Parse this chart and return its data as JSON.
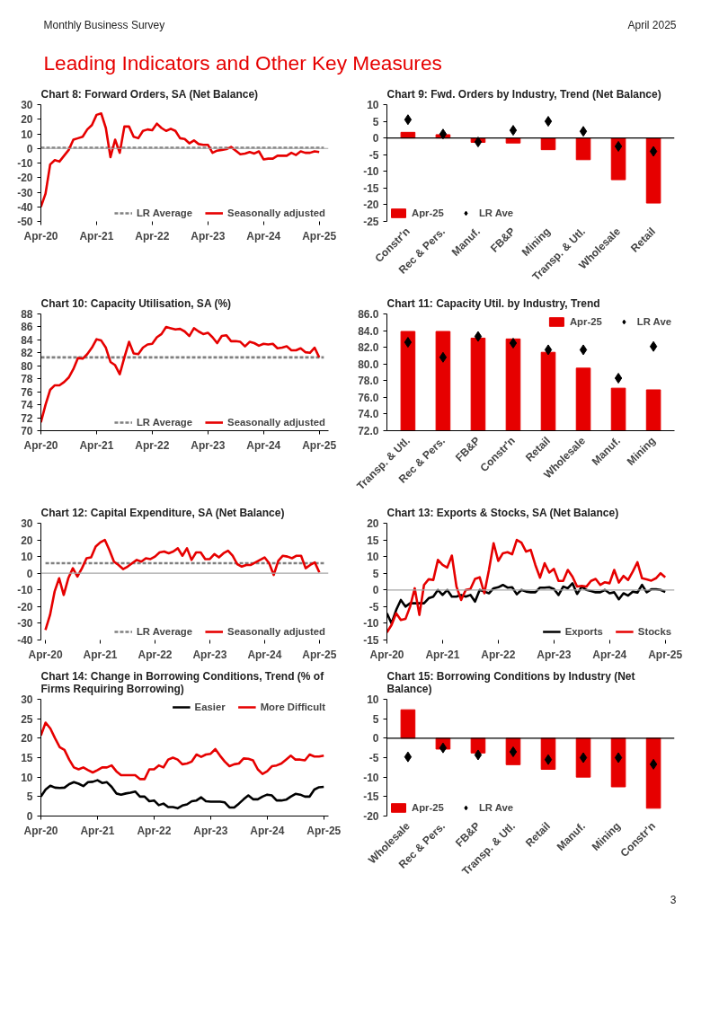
{
  "chart_data": [
    {
      "type": "other",
      "title": "Leading Indicators and Other Key Measures",
      "annotations": [
        "Monthly Business Survey",
        "April 2025"
      ]
    },
    {
      "type": "line",
      "title": "Chart 8: Forward Orders, SA (Net Balance)",
      "legend": "bottom right",
      "x": [
        "2020-04",
        "2020-05",
        "2020-06",
        "2020-07",
        "2020-08",
        "2020-09",
        "2020-10",
        "2020-11",
        "2020-12",
        "2021-01",
        "2021-02",
        "2021-03",
        "2021-04",
        "2021-05",
        "2021-06",
        "2021-07",
        "2021-08",
        "2021-09",
        "2021-10",
        "2021-11",
        "2021-12",
        "2022-01",
        "2022-02",
        "2022-03",
        "2022-04",
        "2022-05",
        "2022-06",
        "2022-07",
        "2022-08",
        "2022-09",
        "2022-10",
        "2022-11",
        "2022-12",
        "2023-01",
        "2023-02",
        "2023-03",
        "2023-04",
        "2023-05",
        "2023-06",
        "2023-07",
        "2023-08",
        "2023-09",
        "2023-10",
        "2023-11",
        "2023-12",
        "2024-01",
        "2024-02",
        "2024-03",
        "2024-04",
        "2024-05",
        "2024-06",
        "2024-07",
        "2024-08",
        "2024-09",
        "2024-10",
        "2024-11",
        "2024-12",
        "2025-01",
        "2025-02",
        "2025-03",
        "2025-04"
      ],
      "xlim": [
        "2020-04",
        "2025-06"
      ],
      "xticks": [
        {
          "value": "2020-04",
          "label": "Apr-20"
        },
        {
          "value": "2021-04",
          "label": "Apr-21"
        },
        {
          "value": "2022-04",
          "label": "Apr-22"
        },
        {
          "value": "2023-04",
          "label": "Apr-23"
        },
        {
          "value": "2024-04",
          "label": "Apr-24"
        },
        {
          "value": "2025-04",
          "label": "Apr-25"
        }
      ],
      "ylim": [
        -50,
        30
      ],
      "yticks": [
        -50,
        -40,
        -30,
        -20,
        -10,
        0,
        10,
        20,
        30
      ],
      "ref_lines": [
        {
          "axis": "y",
          "value": 0,
          "color": "#a6a6a6"
        }
      ],
      "series": [
        {
          "name": "LR Average",
          "color": "#808080",
          "line_style": "dashed",
          "x": [
            "2020-04",
            "2025-05"
          ],
          "values": [
            0.5,
            0.5
          ]
        },
        {
          "name": "Seasonally adjusted",
          "color": "#e60000",
          "values": [
            -40,
            -31,
            -11,
            -8,
            -9,
            -5,
            -1,
            6,
            7,
            8,
            13,
            16,
            23,
            24,
            14,
            -6,
            6,
            -3,
            15,
            15,
            8,
            7,
            12,
            13,
            12.5,
            17,
            14,
            12,
            13.5,
            12,
            7,
            6.5,
            3.5,
            5.5,
            3,
            2.5,
            2.5,
            -3,
            -1.5,
            -1,
            -0.5,
            1,
            -1.5,
            -4,
            -3.5,
            -2.5,
            -3.5,
            -2,
            -7.5,
            -7,
            -7,
            -5,
            -5,
            -5,
            -3,
            -4.5,
            -2,
            -3,
            -3,
            -2,
            -2.5
          ]
        }
      ]
    },
    {
      "type": "bar",
      "title": "Chart 9: Fwd. Orders by Industry, Trend (Net Balance)",
      "legend": "bottom left",
      "categories": [
        "Constr'n",
        "Rec & Pers.",
        "Manuf.",
        "FB&P",
        "Mining",
        "Transp. & Utl.",
        "Wholesale",
        "Retail"
      ],
      "ylim": [
        -25,
        10
      ],
      "yticks": [
        -25,
        -20,
        -15,
        -10,
        -5,
        0,
        5,
        10
      ],
      "ref_lines": [
        {
          "axis": "y",
          "value": 0,
          "color": "#000000"
        }
      ],
      "series": [
        {
          "name": "Apr-25",
          "type": "bar",
          "color": "#e60000",
          "values": [
            1.7,
            1,
            -1.3,
            -1.5,
            -3.5,
            -6.5,
            -12.5,
            -19.5
          ]
        },
        {
          "name": "LR Ave",
          "type": "scatter",
          "marker": "diamond",
          "color": "#000000",
          "values": [
            5.5,
            1.2,
            -1.2,
            2.3,
            5,
            2,
            -2.5,
            -4
          ]
        }
      ]
    },
    {
      "type": "line",
      "title": "Chart 10: Capacity Utilisation, SA (%)",
      "legend": "bottom right",
      "x": [
        "2020-04",
        "2020-05",
        "2020-06",
        "2020-07",
        "2020-08",
        "2020-09",
        "2020-10",
        "2020-11",
        "2020-12",
        "2021-01",
        "2021-02",
        "2021-03",
        "2021-04",
        "2021-05",
        "2021-06",
        "2021-07",
        "2021-08",
        "2021-09",
        "2021-10",
        "2021-11",
        "2021-12",
        "2022-01",
        "2022-02",
        "2022-03",
        "2022-04",
        "2022-05",
        "2022-06",
        "2022-07",
        "2022-08",
        "2022-09",
        "2022-10",
        "2022-11",
        "2022-12",
        "2023-01",
        "2023-02",
        "2023-03",
        "2023-04",
        "2023-05",
        "2023-06",
        "2023-07",
        "2023-08",
        "2023-09",
        "2023-10",
        "2023-11",
        "2023-12",
        "2024-01",
        "2024-02",
        "2024-03",
        "2024-04",
        "2024-05",
        "2024-06",
        "2024-07",
        "2024-08",
        "2024-09",
        "2024-10",
        "2024-11",
        "2024-12",
        "2025-01",
        "2025-02",
        "2025-03",
        "2025-04"
      ],
      "xlim": [
        "2020-04",
        "2025-06"
      ],
      "xticks": [
        {
          "value": "2020-04",
          "label": "Apr-20"
        },
        {
          "value": "2021-04",
          "label": "Apr-21"
        },
        {
          "value": "2022-04",
          "label": "Apr-22"
        },
        {
          "value": "2023-04",
          "label": "Apr-23"
        },
        {
          "value": "2024-04",
          "label": "Apr-24"
        },
        {
          "value": "2025-04",
          "label": "Apr-25"
        }
      ],
      "ylim": [
        70,
        88
      ],
      "yticks": [
        70,
        72,
        74,
        76,
        78,
        80,
        82,
        84,
        86,
        88
      ],
      "series": [
        {
          "name": "LR Average",
          "color": "#808080",
          "line_style": "dashed",
          "x": [
            "2020-04",
            "2025-05"
          ],
          "values": [
            81.3,
            81.3
          ]
        },
        {
          "name": "Seasonally adjusted",
          "color": "#e60000",
          "values": [
            71.3,
            74,
            76.3,
            77,
            77,
            77.5,
            78.2,
            79.5,
            81.2,
            81.1,
            81.8,
            82.8,
            84.1,
            83.9,
            82.8,
            80.6,
            80.1,
            78.7,
            81.3,
            83.7,
            81.9,
            81.8,
            82.8,
            83.3,
            83.4,
            84.4,
            84.9,
            86,
            85.8,
            85.6,
            85.7,
            85.3,
            84.6,
            85.8,
            85.3,
            84.9,
            85.1,
            84.4,
            83.5,
            84.6,
            84.7,
            83.8,
            83.8,
            83.7,
            83,
            83.7,
            83.5,
            83.1,
            83.4,
            83.3,
            83.4,
            82.7,
            82.8,
            83,
            82.4,
            82.4,
            82.7,
            82.1,
            82,
            82.8,
            81.3
          ]
        }
      ]
    },
    {
      "type": "bar",
      "title": "Chart 11: Capacity Util. by Industry, Trend",
      "legend": "top right",
      "categories": [
        "Transp. & Utl.",
        "Rec & Pers.",
        "FB&P",
        "Constr'n",
        "Retail",
        "Wholesale",
        "Manuf.",
        "Mining"
      ],
      "ylim": [
        72,
        86
      ],
      "yticks": [
        {
          "value": 72,
          "label": "72.0"
        },
        {
          "value": 74,
          "label": "74.0"
        },
        {
          "value": 76,
          "label": "76.0"
        },
        {
          "value": 78,
          "label": "78.0"
        },
        {
          "value": 80,
          "label": "80.0"
        },
        {
          "value": 82,
          "label": "82.0"
        },
        {
          "value": 84,
          "label": "84.0"
        },
        {
          "value": 86,
          "label": "86.0"
        }
      ],
      "series": [
        {
          "name": "Apr-25",
          "type": "bar",
          "color": "#e60000",
          "values": [
            83.9,
            83.9,
            83.1,
            83.0,
            81.4,
            79.5,
            77.1,
            76.9
          ]
        },
        {
          "name": "LR Ave",
          "type": "scatter",
          "marker": "diamond",
          "color": "#000000",
          "values": [
            82.6,
            80.8,
            83.3,
            82.5,
            81.7,
            81.7,
            78.3,
            82.1
          ]
        }
      ]
    },
    {
      "type": "line",
      "title": "Chart 12: Capital Expenditure, SA (Net Balance)",
      "legend": "bottom right",
      "x": [
        "2020-04",
        "2020-05",
        "2020-06",
        "2020-07",
        "2020-08",
        "2020-09",
        "2020-10",
        "2020-11",
        "2020-12",
        "2021-01",
        "2021-02",
        "2021-03",
        "2021-04",
        "2021-05",
        "2021-06",
        "2021-07",
        "2021-08",
        "2021-09",
        "2021-10",
        "2021-11",
        "2021-12",
        "2022-01",
        "2022-02",
        "2022-03",
        "2022-04",
        "2022-05",
        "2022-06",
        "2022-07",
        "2022-08",
        "2022-09",
        "2022-10",
        "2022-11",
        "2022-12",
        "2023-01",
        "2023-02",
        "2023-03",
        "2023-04",
        "2023-05",
        "2023-06",
        "2023-07",
        "2023-08",
        "2023-09",
        "2023-10",
        "2023-11",
        "2023-12",
        "2024-01",
        "2024-02",
        "2024-03",
        "2024-04",
        "2024-05",
        "2024-06",
        "2024-07",
        "2024-08",
        "2024-09",
        "2024-10",
        "2024-11",
        "2024-12",
        "2025-01",
        "2025-02",
        "2025-03",
        "2025-04"
      ],
      "xlim": [
        "2020-03",
        "2025-06"
      ],
      "xticks": [
        {
          "value": "2020-04",
          "label": "Apr-20"
        },
        {
          "value": "2021-04",
          "label": "Apr-21"
        },
        {
          "value": "2022-04",
          "label": "Apr-22"
        },
        {
          "value": "2023-04",
          "label": "Apr-23"
        },
        {
          "value": "2024-04",
          "label": "Apr-24"
        },
        {
          "value": "2025-04",
          "label": "Apr-25"
        }
      ],
      "ylim": [
        -40,
        30
      ],
      "yticks": [
        -40,
        -30,
        -20,
        -10,
        0,
        10,
        20,
        30
      ],
      "ref_lines": [
        {
          "axis": "y",
          "value": 0,
          "color": "#a6a6a6"
        }
      ],
      "series": [
        {
          "name": "LR Average",
          "color": "#808080",
          "line_style": "dashed",
          "x": [
            "2020-04",
            "2025-05"
          ],
          "values": [
            6,
            6
          ]
        },
        {
          "name": "Seasonally adjusted",
          "color": "#e60000",
          "values": [
            -34,
            -25,
            -11,
            -3,
            -13,
            -3,
            3,
            -2,
            3,
            9,
            9.5,
            16,
            18.5,
            20,
            14,
            7,
            5,
            2.5,
            4,
            6,
            8,
            7,
            9,
            8.5,
            10,
            12.5,
            13,
            12,
            13,
            15,
            10.5,
            15,
            8,
            12.5,
            12.5,
            8.5,
            8.5,
            11.5,
            9.5,
            12,
            13.5,
            10.5,
            5.5,
            4,
            5,
            5,
            6.5,
            8,
            9.5,
            6,
            -1,
            7.5,
            10.5,
            10,
            9,
            10.5,
            10.5,
            3,
            5,
            6.5,
            0.5
          ]
        }
      ]
    },
    {
      "type": "line",
      "title": "Chart 13: Exports & Stocks, SA (Net Balance)",
      "legend": "bottom right",
      "x": [
        "2020-04",
        "2020-05",
        "2020-06",
        "2020-07",
        "2020-08",
        "2020-09",
        "2020-10",
        "2020-11",
        "2020-12",
        "2021-01",
        "2021-02",
        "2021-03",
        "2021-04",
        "2021-05",
        "2021-06",
        "2021-07",
        "2021-08",
        "2021-09",
        "2021-10",
        "2021-11",
        "2021-12",
        "2022-01",
        "2022-02",
        "2022-03",
        "2022-04",
        "2022-05",
        "2022-06",
        "2022-07",
        "2022-08",
        "2022-09",
        "2022-10",
        "2022-11",
        "2022-12",
        "2023-01",
        "2023-02",
        "2023-03",
        "2023-04",
        "2023-05",
        "2023-06",
        "2023-07",
        "2023-08",
        "2023-09",
        "2023-10",
        "2023-11",
        "2023-12",
        "2024-01",
        "2024-02",
        "2024-03",
        "2024-04",
        "2024-05",
        "2024-06",
        "2024-07",
        "2024-08",
        "2024-09",
        "2024-10",
        "2024-11",
        "2024-12",
        "2025-01",
        "2025-02",
        "2025-03",
        "2025-04"
      ],
      "xlim": [
        "2020-04",
        "2025-06"
      ],
      "xticks": [
        {
          "value": "2020-04",
          "label": "Apr-20"
        },
        {
          "value": "2021-04",
          "label": "Apr-21"
        },
        {
          "value": "2022-04",
          "label": "Apr-22"
        },
        {
          "value": "2023-04",
          "label": "Apr-23"
        },
        {
          "value": "2024-04",
          "label": "Apr-24"
        },
        {
          "value": "2025-04",
          "label": "Apr-25"
        }
      ],
      "ylim": [
        -15,
        20
      ],
      "yticks": [
        -15,
        -10,
        -5,
        0,
        5,
        10,
        15,
        20
      ],
      "ref_lines": [
        {
          "axis": "y",
          "value": 0,
          "color": "#a6a6a6"
        }
      ],
      "series": [
        {
          "name": "Exports",
          "color": "#000000",
          "values": [
            -7,
            -10,
            -6,
            -3,
            -5,
            -4,
            -4,
            -4,
            -4,
            -2.5,
            -2,
            0,
            -1.5,
            0,
            -2,
            -2,
            -1.5,
            -2,
            -1.5,
            -3.5,
            0,
            -0.5,
            -1,
            0.5,
            0.8,
            1.5,
            0.7,
            0.8,
            -1.3,
            0,
            -0.5,
            -0.7,
            -0.7,
            0.7,
            0.7,
            0.8,
            0.3,
            -1.5,
            1,
            0.5,
            2,
            -1.2,
            1,
            0,
            -0.3,
            -0.7,
            -0.7,
            0,
            -1,
            -0.7,
            -2.8,
            -1,
            -1.7,
            -0.5,
            -0.8,
            1.5,
            -0.7,
            0.2,
            0.2,
            0,
            -0.6
          ]
        },
        {
          "name": "Stocks",
          "color": "#e60000",
          "values": [
            -12.7,
            -10.5,
            -7,
            -9,
            -8.7,
            -5,
            0.5,
            -7.5,
            1.5,
            3.2,
            3,
            9,
            7.5,
            6.7,
            10.3,
            1,
            -3,
            0,
            0.3,
            3.3,
            3.8,
            -1,
            6,
            14,
            8.7,
            11,
            11.3,
            10.7,
            15,
            14.2,
            11.5,
            12,
            7.5,
            3.7,
            8,
            5.2,
            6.3,
            2.7,
            2.7,
            6,
            4,
            1,
            1.2,
            1,
            2.7,
            3.3,
            1.5,
            2.3,
            2,
            6,
            2.2,
            4.2,
            3,
            5.5,
            8.3,
            3.5,
            3.2,
            2.8,
            3.5,
            5,
            3.8
          ]
        }
      ]
    },
    {
      "type": "line",
      "title": "Chart 14: Change in Borrowing Conditions, Trend (% of Firms Requiring Borrowing)",
      "legend": "top right",
      "x": [
        "2020-04",
        "2020-05",
        "2020-06",
        "2020-07",
        "2020-08",
        "2020-09",
        "2020-10",
        "2020-11",
        "2020-12",
        "2021-01",
        "2021-02",
        "2021-03",
        "2021-04",
        "2021-05",
        "2021-06",
        "2021-07",
        "2021-08",
        "2021-09",
        "2021-10",
        "2021-11",
        "2021-12",
        "2022-01",
        "2022-02",
        "2022-03",
        "2022-04",
        "2022-05",
        "2022-06",
        "2022-07",
        "2022-08",
        "2022-09",
        "2022-10",
        "2022-11",
        "2022-12",
        "2023-01",
        "2023-02",
        "2023-03",
        "2023-04",
        "2023-05",
        "2023-06",
        "2023-07",
        "2023-08",
        "2023-09",
        "2023-10",
        "2023-11",
        "2023-12",
        "2024-01",
        "2024-02",
        "2024-03",
        "2024-04",
        "2024-05",
        "2024-06",
        "2024-07",
        "2024-08",
        "2024-09",
        "2024-10",
        "2024-11",
        "2024-12",
        "2025-01",
        "2025-02",
        "2025-03",
        "2025-04"
      ],
      "xlim": [
        "2020-04",
        "2025-05"
      ],
      "xticks": [
        {
          "value": "2020-04",
          "label": "Apr-20"
        },
        {
          "value": "2021-04",
          "label": "Apr-21"
        },
        {
          "value": "2022-04",
          "label": "Apr-22"
        },
        {
          "value": "2023-04",
          "label": "Apr-23"
        },
        {
          "value": "2024-04",
          "label": "Apr-24"
        },
        {
          "value": "2025-04",
          "label": "Apr-25"
        }
      ],
      "ylim": [
        0,
        30
      ],
      "yticks": [
        0,
        5,
        10,
        15,
        20,
        25,
        30
      ],
      "series": [
        {
          "name": "Easier",
          "color": "#000000",
          "values": [
            5,
            6.8,
            7.8,
            7.3,
            7.2,
            7.3,
            8.2,
            8.7,
            8.3,
            7.7,
            8.7,
            8.8,
            9.2,
            8.5,
            8.7,
            7.5,
            5.8,
            5.5,
            5.8,
            6,
            6.3,
            5,
            5,
            3.8,
            4,
            2.8,
            3.2,
            2.3,
            2.3,
            2,
            2.7,
            3,
            3.8,
            4,
            4.8,
            3.8,
            3.7,
            3.7,
            3.7,
            3.5,
            2.2,
            2.2,
            3.2,
            4.3,
            5.3,
            4.3,
            4.3,
            5,
            5.5,
            5.3,
            4,
            4,
            4.2,
            5,
            5.7,
            5.5,
            5,
            5,
            6.8,
            7.4,
            7.5
          ]
        },
        {
          "name": "More Difficult",
          "color": "#e60000",
          "values": [
            20.7,
            24,
            22.5,
            20,
            17.7,
            17,
            14.5,
            12.5,
            12,
            12.5,
            11.8,
            11.2,
            11.8,
            12.5,
            12.5,
            13,
            11.5,
            10.5,
            10.5,
            10.5,
            10.5,
            9.5,
            9.5,
            12,
            12,
            13,
            12.5,
            14.5,
            15,
            14.5,
            13.3,
            13.5,
            14,
            15.8,
            15.2,
            15.8,
            16,
            17.2,
            15.5,
            14,
            12.8,
            13.3,
            13.5,
            14.8,
            14.7,
            14.3,
            12,
            10.8,
            11.5,
            12.8,
            13,
            13.5,
            14.5,
            15.5,
            14.5,
            14.5,
            14.3,
            15.8,
            15.3,
            15.3,
            15.5
          ]
        }
      ]
    },
    {
      "type": "bar",
      "title": "Chart 15: Borrowing Conditions by Industry (Net Balance)",
      "legend": "bottom left",
      "categories": [
        "Wholesale",
        "Rec & Pers.",
        "FB&P",
        "Transp. & Utl.",
        "Retail",
        "Manuf.",
        "Mining",
        "Constr'n"
      ],
      "ylim": [
        -20,
        10
      ],
      "yticks": [
        -20,
        -15,
        -10,
        -5,
        0,
        5,
        10
      ],
      "ref_lines": [
        {
          "axis": "y",
          "value": 0,
          "color": "#000000"
        }
      ],
      "series": [
        {
          "name": "Apr-25",
          "type": "bar",
          "color": "#e60000",
          "values": [
            7.3,
            -2.8,
            -3.8,
            -6.8,
            -8,
            -10,
            -12.5,
            -18
          ]
        },
        {
          "name": "LR Ave",
          "type": "scatter",
          "marker": "diamond",
          "color": "#000000",
          "values": [
            -4.8,
            -2.5,
            -4.3,
            -3.5,
            -5.5,
            -5,
            -5,
            -6.7
          ]
        }
      ]
    },
    {
      "type": "other",
      "annotations": [
        "3"
      ]
    }
  ]
}
